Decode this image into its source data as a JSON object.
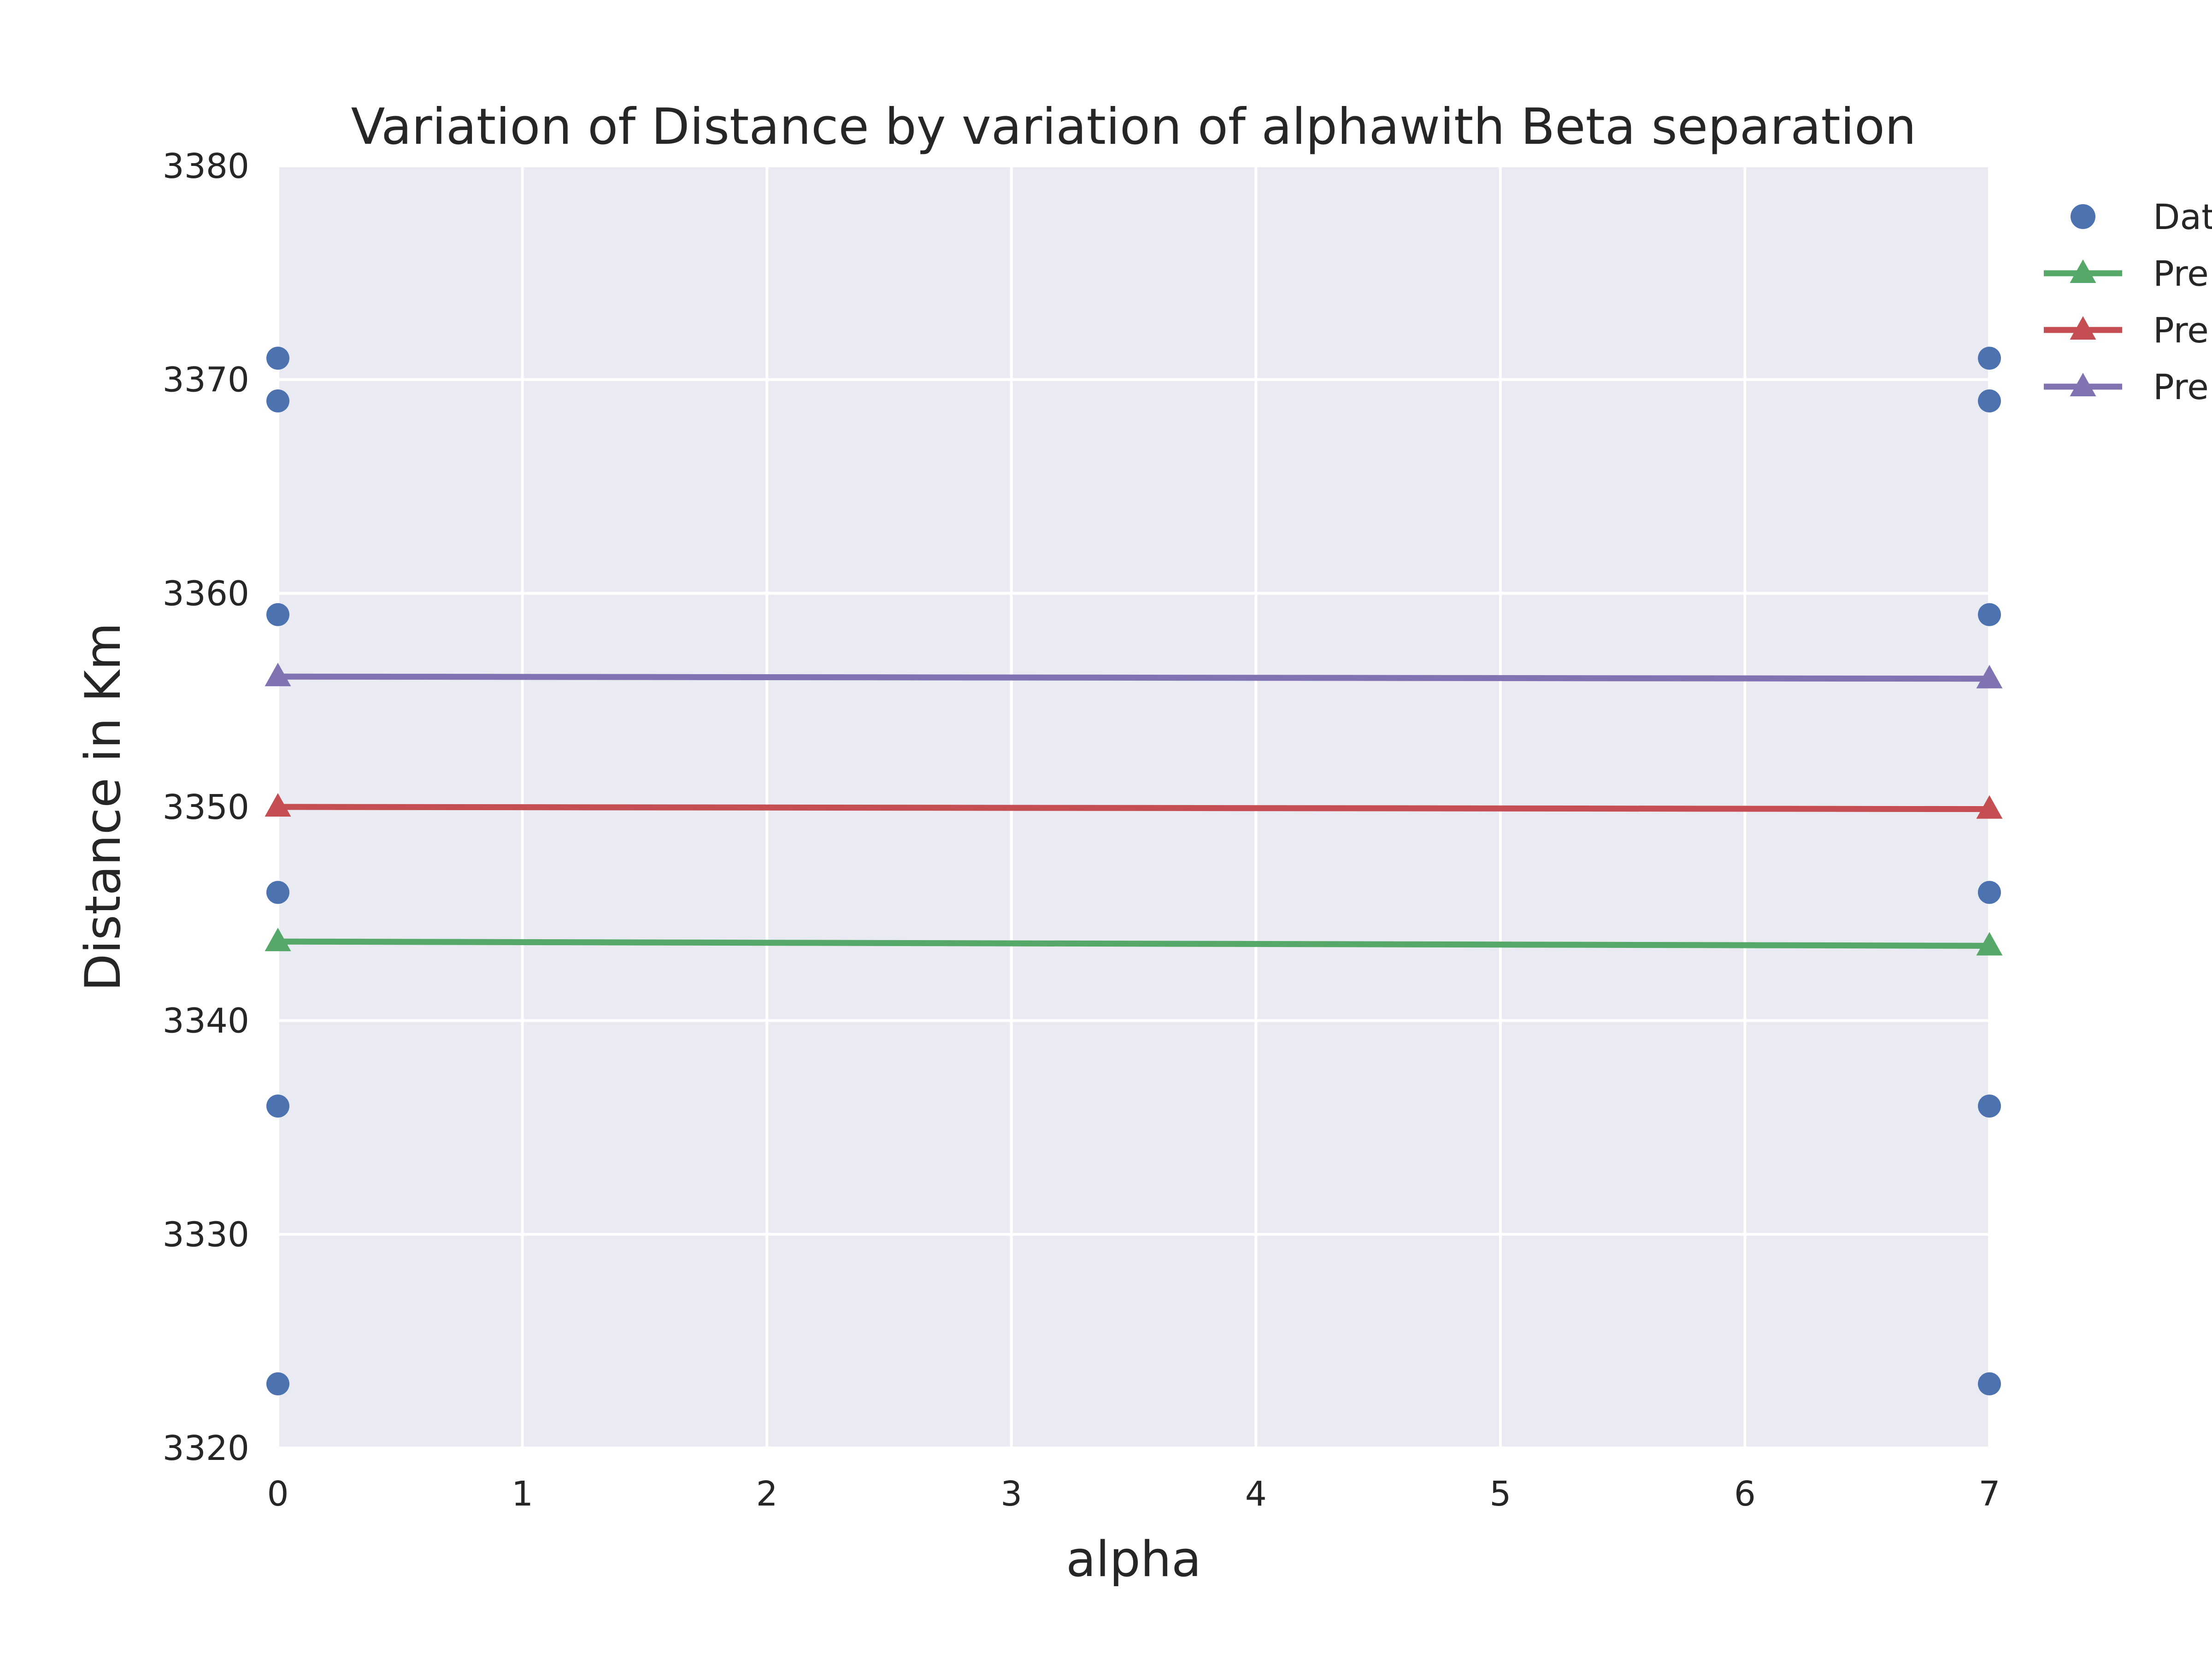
{
  "chart_data": {
    "type": "line",
    "title": "Variation of  Distance by variation of alphawith Beta separation",
    "xlabel": "alpha",
    "ylabel": "Distance in Km",
    "xlim": [
      0,
      7
    ],
    "ylim": [
      3320,
      3380
    ],
    "x_ticks": [
      "0",
      "1",
      "2",
      "3",
      "4",
      "5",
      "6",
      "7"
    ],
    "y_ticks": [
      "3320",
      "3330",
      "3340",
      "3350",
      "3360",
      "3370",
      "3380"
    ],
    "grid": true,
    "legend_position": "outside-top-right",
    "scatter": {
      "name": "Dat",
      "color": "#4c72b0",
      "marker": "circle",
      "points": [
        {
          "x": 0,
          "y": 3371
        },
        {
          "x": 0,
          "y": 3369
        },
        {
          "x": 0,
          "y": 3359
        },
        {
          "x": 0,
          "y": 3346
        },
        {
          "x": 0,
          "y": 3336
        },
        {
          "x": 0,
          "y": 3323
        },
        {
          "x": 7,
          "y": 3371
        },
        {
          "x": 7,
          "y": 3369
        },
        {
          "x": 7,
          "y": 3359
        },
        {
          "x": 7,
          "y": 3346
        },
        {
          "x": 7,
          "y": 3336
        },
        {
          "x": 7,
          "y": 3323
        }
      ]
    },
    "series": [
      {
        "name": "Pre",
        "color": "#55a868",
        "marker": "triangle",
        "x": [
          0,
          7
        ],
        "y": [
          3343.7,
          3343.5
        ]
      },
      {
        "name": "Pre",
        "color": "#c44e52",
        "marker": "triangle",
        "x": [
          0,
          7
        ],
        "y": [
          3350.0,
          3349.9
        ]
      },
      {
        "name": "Pre",
        "color": "#8172b2",
        "marker": "triangle",
        "x": [
          0,
          7
        ],
        "y": [
          3356.1,
          3356.0
        ]
      }
    ],
    "plot_background": "#eaeaf2",
    "grid_color": "#ffffff"
  }
}
